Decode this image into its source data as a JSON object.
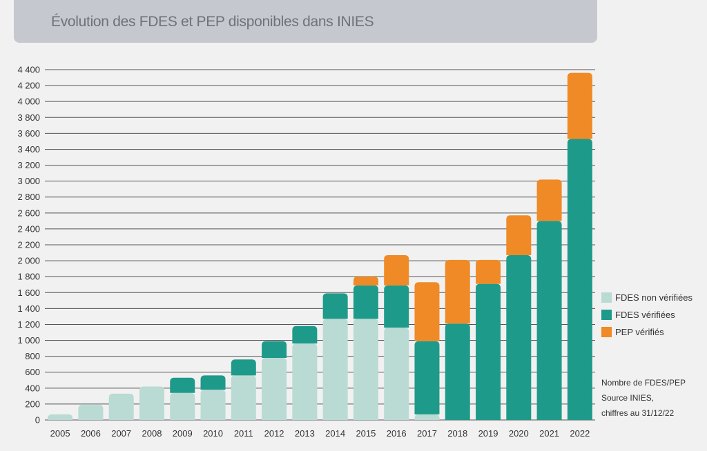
{
  "title": "Évolution des FDES et PEP disponibles dans INIES",
  "note_lines": [
    "Nombre de FDES/PEP",
    "Source INIES,",
    "chiffres au 31/12/22"
  ],
  "colors": {
    "fdes_non_verifiees": "#b9dbd3",
    "fdes_verifiees": "#1e9a8a",
    "pep_verifies": "#f08a26",
    "grid": "#555555"
  },
  "chart_data": {
    "type": "bar",
    "stacked": true,
    "title": "Évolution des FDES et PEP disponibles dans INIES",
    "xlabel": "",
    "ylabel": "",
    "ylim": [
      0,
      4400
    ],
    "yticks": [
      0,
      200,
      400,
      600,
      800,
      1000,
      1200,
      1400,
      1600,
      1800,
      2000,
      2200,
      2400,
      2600,
      2800,
      3000,
      3200,
      3400,
      3600,
      3800,
      4000,
      4200,
      4400
    ],
    "ytick_labels": [
      "0",
      "200",
      "400",
      "600",
      "800",
      "1 000",
      "1 200",
      "1 400",
      "1 600",
      "1 800",
      "2 000",
      "2 200",
      "2 400",
      "2 600",
      "2 800",
      "3 000",
      "3 200",
      "3 400",
      "3 600",
      "3 800",
      "4 000",
      "4 200",
      "4 400"
    ],
    "grid": true,
    "legend_position": "right",
    "categories": [
      "2005",
      "2006",
      "2007",
      "2008",
      "2009",
      "2010",
      "2011",
      "2012",
      "2013",
      "2014",
      "2015",
      "2016",
      "2017",
      "2018",
      "2019",
      "2020",
      "2021",
      "2022"
    ],
    "series": [
      {
        "name": "FDES non vérifiées",
        "color_key": "fdes_non_verifiees",
        "values": [
          70,
          190,
          330,
          420,
          340,
          380,
          560,
          780,
          960,
          1270,
          1270,
          1160,
          70,
          0,
          0,
          0,
          0,
          0
        ]
      },
      {
        "name": "FDES vérifiées",
        "color_key": "fdes_verifiees",
        "values": [
          0,
          0,
          0,
          0,
          190,
          180,
          200,
          210,
          220,
          320,
          420,
          530,
          920,
          1210,
          1710,
          2070,
          2500,
          3530
        ]
      },
      {
        "name": "PEP vérifiés",
        "color_key": "pep_verifies",
        "values": [
          0,
          0,
          0,
          0,
          0,
          0,
          0,
          0,
          0,
          0,
          110,
          380,
          740,
          800,
          300,
          500,
          520,
          830
        ]
      }
    ]
  }
}
